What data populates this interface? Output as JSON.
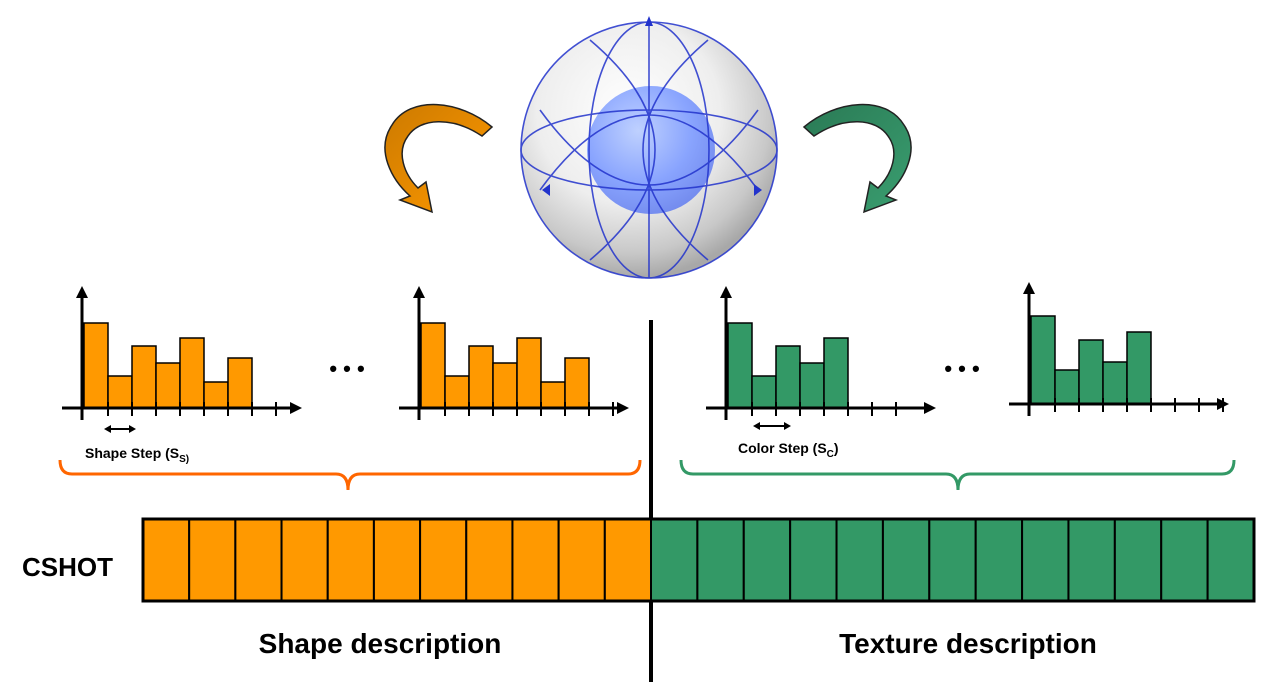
{
  "colors": {
    "shape": "#FF9900",
    "texture": "#339966",
    "shape_brace": "#FF6600",
    "sphere_inner": "#7799FF",
    "grid_lines": "#2233CC",
    "text": "#000000"
  },
  "icons": {
    "sphere": "sphere-with-support-grid-icon",
    "left_arrow": "curved-arrow-down-left-icon",
    "right_arrow": "curved-arrow-down-right-icon"
  },
  "labels": {
    "shape_step_main": "Shape Step (S",
    "shape_step_sub": "S)",
    "color_step_main": "Color Step (S",
    "color_step_sub": "C",
    "color_step_close": ")",
    "cshot": "CSHOT",
    "shape_description": "Shape description",
    "texture_description": "Texture description",
    "ellipsis_left": "• • •",
    "ellipsis_right": "• • •"
  },
  "histograms": {
    "shape": [
      {
        "values": [
          85,
          32,
          62,
          45,
          70,
          26,
          50
        ]
      },
      {
        "values": [
          85,
          32,
          62,
          45,
          70,
          26,
          50
        ]
      }
    ],
    "texture": [
      {
        "values": [
          85,
          32,
          62,
          45,
          70
        ]
      },
      {
        "values": [
          88,
          34,
          64,
          42,
          72
        ]
      }
    ]
  },
  "descriptor_bar": {
    "shape_bins": 11,
    "texture_bins": 13
  }
}
